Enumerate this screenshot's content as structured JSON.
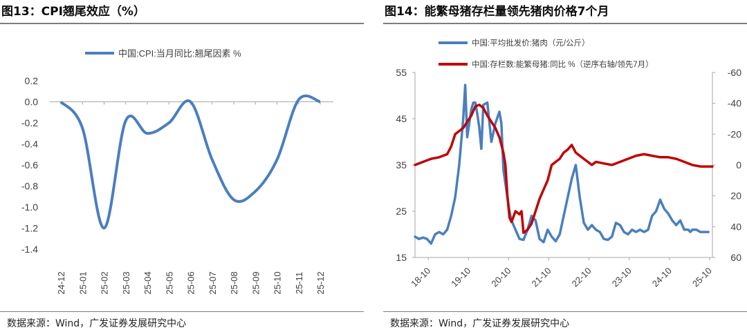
{
  "figures": [
    {
      "title": "图13：CPI翘尾效应（%）",
      "source": "数据来源：Wind，广发证券发展研究中心"
    },
    {
      "title": "图14：能繁母猪存栏量领先猪肉价格7个月",
      "source": "数据来源：Wind，广发证券发展研究中心"
    }
  ],
  "chart_data": [
    {
      "type": "line",
      "title": "",
      "xlabel": "",
      "ylabel": "",
      "categories": [
        "24-12",
        "25-01",
        "25-02",
        "25-03",
        "25-04",
        "25-05",
        "25-06",
        "25-07",
        "25-08",
        "25-09",
        "25-10",
        "25-11",
        "25-12"
      ],
      "ylim": [
        -1.4,
        0.2
      ],
      "yticks": [
        0.2,
        0.0,
        -0.2,
        -0.4,
        -0.6,
        -0.8,
        -1.0,
        -1.2,
        -1.4
      ],
      "ytick_labels": [
        "0.2",
        "0.0",
        "-0.2",
        "-0.4",
        "-0.6",
        "-0.8",
        "-1.0",
        "-1.2",
        "-1.4"
      ],
      "grid": false,
      "legend_position": "top",
      "series": [
        {
          "name": "中国:CPI:当月同比:翘尾因素 %",
          "color": "#4a7ec0",
          "values": [
            0.0,
            -0.25,
            -1.2,
            -0.18,
            -0.3,
            -0.2,
            0.0,
            -0.55,
            -0.93,
            -0.85,
            -0.55,
            0.02,
            0.0
          ]
        }
      ]
    },
    {
      "type": "line",
      "title": "",
      "xlabel": "",
      "ylabel": "",
      "categories": [
        "18-10",
        "19-10",
        "20-10",
        "21-10",
        "22-10",
        "23-10",
        "24-10",
        "25-10"
      ],
      "x_range": [
        2018.5,
        2025.9
      ],
      "ylim_left": [
        15,
        55
      ],
      "yticks_left": [
        15,
        25,
        35,
        45,
        55
      ],
      "ylim_right": [
        60,
        -60
      ],
      "yticks_right": [
        60,
        40,
        20,
        0,
        -20,
        -40,
        -60
      ],
      "right_axis_reversed": true,
      "grid": false,
      "legend_position": "top-left",
      "series": [
        {
          "name": "中国:平均批发价:猪肉（元/公斤）",
          "axis": "left",
          "color": "#4a7ec0",
          "x": [
            2018.5,
            2018.6,
            2018.7,
            2018.8,
            2018.9,
            2019.0,
            2019.1,
            2019.2,
            2019.3,
            2019.4,
            2019.5,
            2019.6,
            2019.7,
            2019.75,
            2019.8,
            2019.9,
            2019.95,
            2020.0,
            2020.05,
            2020.1,
            2020.15,
            2020.2,
            2020.3,
            2020.4,
            2020.5,
            2020.6,
            2020.65,
            2020.7,
            2020.8,
            2020.85,
            2020.9,
            2021.0,
            2021.1,
            2021.2,
            2021.3,
            2021.4,
            2021.5,
            2021.6,
            2021.7,
            2021.8,
            2021.9,
            2022.0,
            2022.1,
            2022.2,
            2022.3,
            2022.4,
            2022.5,
            2022.6,
            2022.7,
            2022.8,
            2022.9,
            2023.0,
            2023.1,
            2023.2,
            2023.3,
            2023.4,
            2023.5,
            2023.6,
            2023.7,
            2023.8,
            2023.9,
            2024.0,
            2024.1,
            2024.2,
            2024.3,
            2024.4,
            2024.5,
            2024.6,
            2024.7,
            2024.8,
            2024.9,
            2025.0,
            2025.1,
            2025.2,
            2025.3,
            2025.35,
            2025.4,
            2025.5,
            2025.6,
            2025.7,
            2025.8
          ],
          "values": [
            19.5,
            19,
            19.3,
            19,
            18,
            20,
            20.5,
            20,
            21,
            24,
            28,
            35,
            45,
            52.3,
            41,
            47,
            48.5,
            48.5,
            46,
            43,
            38.5,
            48,
            48.5,
            40,
            44,
            46.5,
            44,
            34,
            28,
            25,
            23,
            21,
            19,
            18.8,
            21,
            24,
            23,
            19,
            18.3,
            21,
            19.5,
            18.5,
            20,
            24,
            28,
            32,
            35,
            28,
            22.5,
            21,
            22,
            21,
            20.5,
            19,
            18.8,
            19.5,
            22.5,
            22,
            20.5,
            20,
            21,
            20.5,
            21,
            20.5,
            21,
            24,
            25,
            27.5,
            25.5,
            24.5,
            23,
            22,
            23,
            21,
            21,
            20.5,
            21,
            21,
            20.5,
            20.5,
            20.5
          ]
        },
        {
          "name": "中国:存栏数:能繁母猪:同比 %（逆序右轴/领先7月）",
          "axis": "right",
          "color": "#c00000",
          "x": [
            2018.5,
            2018.7,
            2018.9,
            2019.1,
            2019.2,
            2019.3,
            2019.4,
            2019.5,
            2019.6,
            2019.7,
            2019.8,
            2019.9,
            2020.0,
            2020.1,
            2020.2,
            2020.3,
            2020.4,
            2020.5,
            2020.6,
            2020.7,
            2020.75,
            2020.8,
            2020.85,
            2020.9,
            2021.0,
            2021.1,
            2021.15,
            2021.2,
            2021.3,
            2021.4,
            2021.5,
            2021.6,
            2021.7,
            2021.8,
            2021.9,
            2022.0,
            2022.1,
            2022.2,
            2022.3,
            2022.4,
            2022.5,
            2022.6,
            2022.7,
            2022.8,
            2022.9,
            2023.0,
            2023.2,
            2023.4,
            2023.6,
            2023.8,
            2024.0,
            2024.2,
            2024.4,
            2024.6,
            2024.8,
            2025.0,
            2025.2,
            2025.4,
            2025.6,
            2025.8,
            2025.9
          ],
          "values": [
            0,
            -2,
            -4,
            -5,
            -6,
            -7,
            -12,
            -20,
            -22,
            -24,
            -28,
            -32,
            -38,
            -39,
            -37,
            -32,
            -28,
            -24,
            -18,
            -8,
            0,
            20,
            34,
            37,
            30,
            32,
            30,
            44,
            42,
            38,
            30,
            22,
            16,
            10,
            0,
            -2,
            -4,
            -8,
            -10,
            -13,
            -8,
            -6,
            -4,
            -2,
            0,
            -2,
            -1,
            0,
            -2,
            -4,
            -6,
            -7,
            -6,
            -5,
            -5,
            -4,
            -2,
            0,
            1,
            1,
            1
          ]
        }
      ]
    }
  ]
}
